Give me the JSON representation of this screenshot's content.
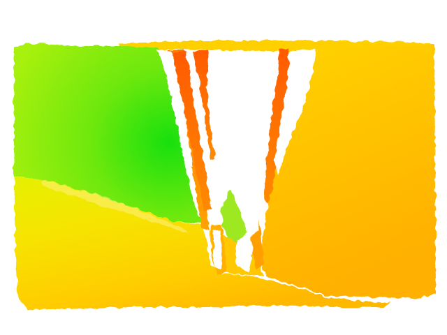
{
  "image": {
    "kind": "false-color depth map",
    "background_color": "#ffffff",
    "palette": {
      "near_green": "#18e010",
      "lime": "#9ef010",
      "yellow": "#f2f000",
      "gold": "#ffc800",
      "amber": "#ffb000",
      "orange": "#ff8a00",
      "red_orange": "#ff5a00"
    }
  }
}
